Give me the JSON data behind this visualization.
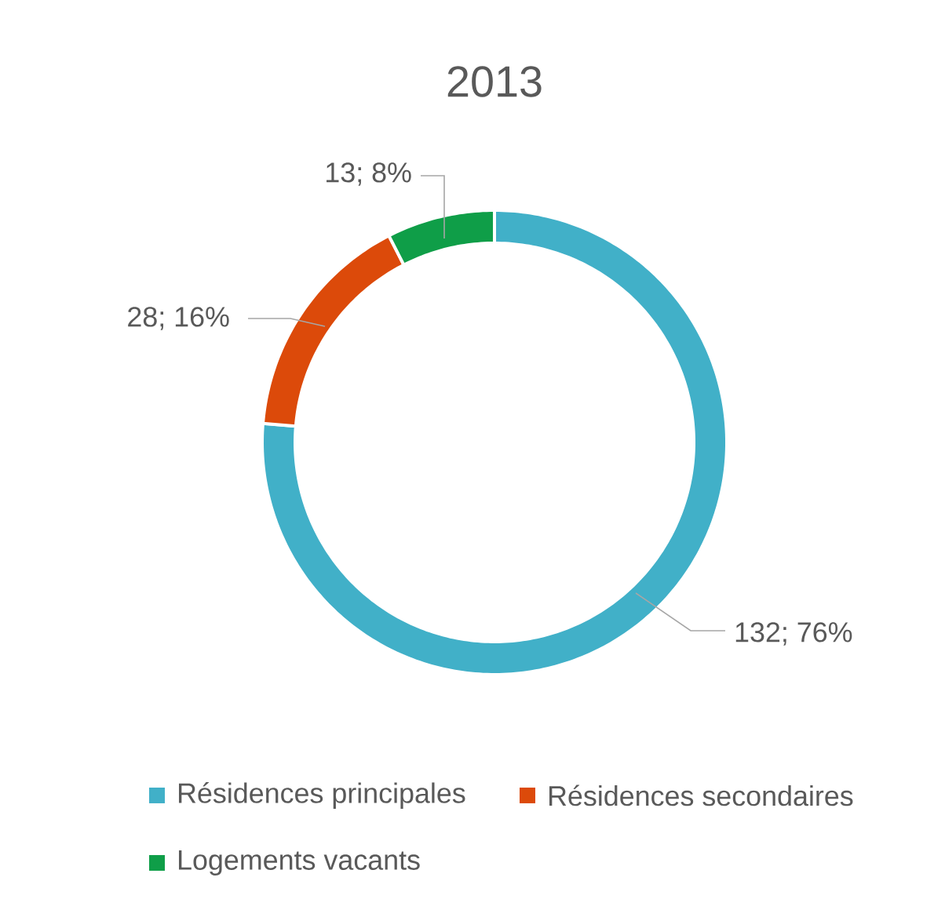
{
  "chart_data": {
    "type": "donut",
    "title": "2013",
    "categories": [
      "Résidences principales",
      "Résidences secondaires",
      "Logements vacants"
    ],
    "values": [
      132,
      28,
      13
    ],
    "colors": [
      "#41b0c8",
      "#dc4a0a",
      "#0f9e48"
    ],
    "value_labels": [
      "132; 76%",
      "28; 16%",
      "13; 8%"
    ],
    "legend": "bottom"
  }
}
